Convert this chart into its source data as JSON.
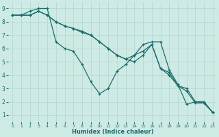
{
  "xlabel": "Humidex (Indice chaleur)",
  "background_color": "#ceeae5",
  "grid_color": "#b8d8d4",
  "line_color": "#1a6b6b",
  "xlim": [
    -0.5,
    23.5
  ],
  "ylim": [
    0.5,
    9.5
  ],
  "yticks": [
    1,
    2,
    3,
    4,
    5,
    6,
    7,
    8,
    9
  ],
  "xticks": [
    0,
    1,
    2,
    3,
    4,
    5,
    6,
    7,
    8,
    9,
    10,
    11,
    12,
    13,
    14,
    15,
    16,
    17,
    18,
    19,
    20,
    21,
    22,
    23
  ],
  "line1_x": [
    0,
    1,
    2,
    3,
    4,
    5,
    6,
    7,
    8,
    9,
    10,
    11,
    12,
    13,
    14,
    15,
    16,
    17,
    18,
    19,
    20,
    21,
    22,
    23
  ],
  "line1_y": [
    8.5,
    8.5,
    8.8,
    9.0,
    9.0,
    6.5,
    6.0,
    5.8,
    4.8,
    3.5,
    2.6,
    3.0,
    4.3,
    4.8,
    5.5,
    6.3,
    6.5,
    6.5,
    4.4,
    3.3,
    1.8,
    2.0,
    2.0,
    1.2
  ],
  "line2_x": [
    0,
    1,
    2,
    3,
    4,
    5,
    6,
    7,
    8,
    9,
    10,
    11,
    12,
    13,
    14,
    15,
    16,
    17,
    18,
    19,
    20,
    21,
    22,
    23
  ],
  "line2_y": [
    8.5,
    8.5,
    8.5,
    8.8,
    8.5,
    8.0,
    7.7,
    7.5,
    7.2,
    7.0,
    6.5,
    6.0,
    5.5,
    5.2,
    5.0,
    5.5,
    6.3,
    4.5,
    4.0,
    3.2,
    3.0,
    2.0,
    1.9,
    1.2
  ],
  "line3_x": [
    0,
    1,
    2,
    3,
    4,
    5,
    6,
    7,
    8,
    9,
    10,
    11,
    12,
    13,
    14,
    15,
    16,
    17,
    18,
    19,
    20,
    21,
    22,
    23
  ],
  "line3_y": [
    8.5,
    8.5,
    8.5,
    8.8,
    8.5,
    8.0,
    7.7,
    7.5,
    7.3,
    7.0,
    6.5,
    6.0,
    5.5,
    5.2,
    5.5,
    5.8,
    6.3,
    4.5,
    4.2,
    3.2,
    2.8,
    1.9,
    1.9,
    1.2
  ]
}
